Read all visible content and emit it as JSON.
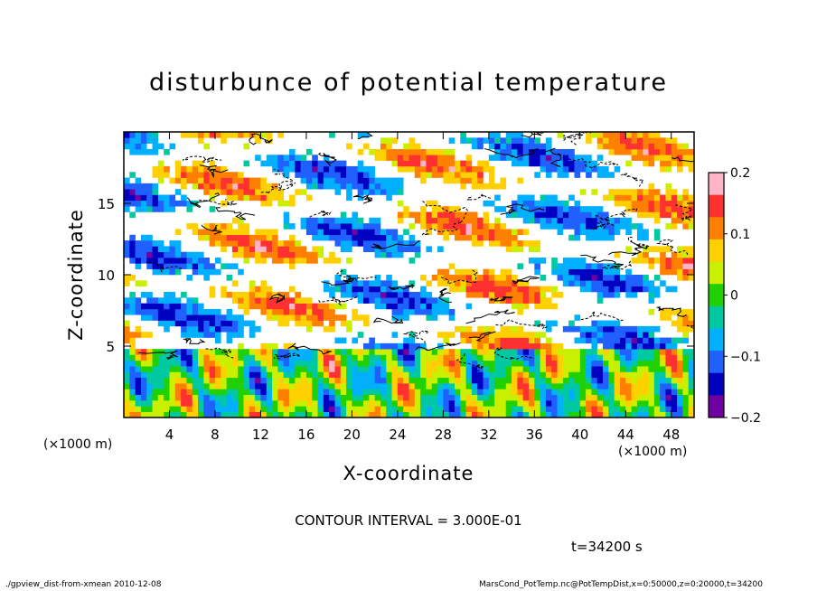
{
  "chart_data": {
    "type": "heatmap",
    "title": "disturbunce of potential temperature",
    "xlabel": "X-coordinate",
    "ylabel": "Z-coordinate",
    "x_unit": "(×1000 m)",
    "z_unit": "(×1000 m)",
    "xlim": [
      0,
      50
    ],
    "ylim": [
      0,
      20
    ],
    "x_ticks": [
      "4",
      "8",
      "12",
      "16",
      "20",
      "24",
      "28",
      "32",
      "36",
      "40",
      "44",
      "48"
    ],
    "y_ticks": [
      "5",
      "10",
      "15"
    ],
    "colorbar": {
      "range": [
        -0.2,
        0.2
      ],
      "tick_labels": [
        "0.2",
        "0.1",
        "0",
        "−0.1",
        "−0.2"
      ],
      "colors": [
        "#ffb4c8",
        "#ff3030",
        "#ff8000",
        "#ffd000",
        "#c8f000",
        "#20d000",
        "#00c8a0",
        "#00b0ff",
        "#2060ff",
        "#0000c0",
        "#7000a0"
      ]
    },
    "contour_interval": "CONTOUR INTERVAL = 3.000E-01",
    "time_label": "t=34200 s",
    "footer_left": "./gpview_dist-from-xmean   2010-12-08",
    "footer_right": "MarsCond_PotTemp.nc@PotTempDist,x=0:50000,z=0:20000,t=34200"
  }
}
